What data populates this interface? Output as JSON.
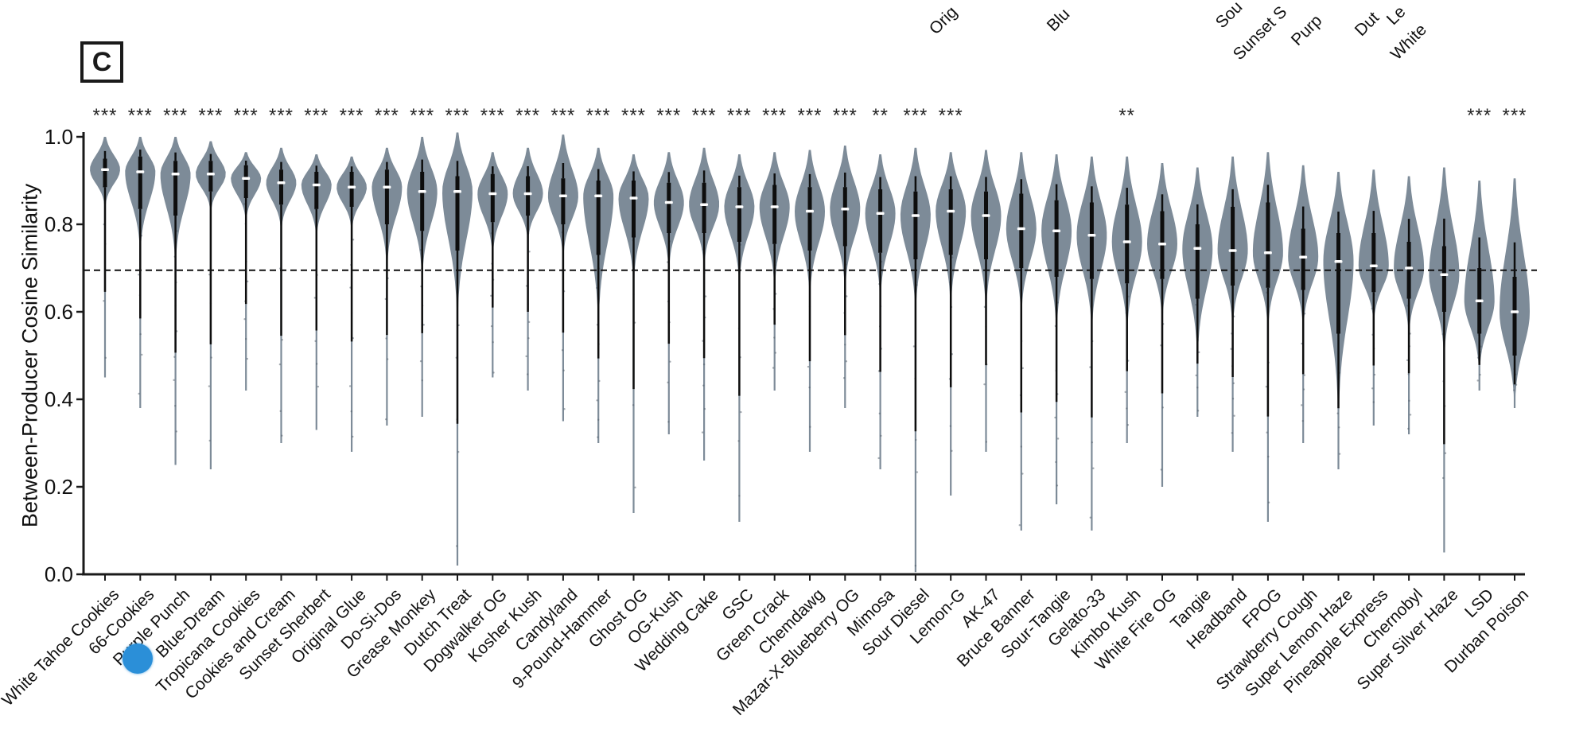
{
  "panel": {
    "label": "C"
  },
  "figure": {
    "top_cutoff_labels": [
      "Orig",
      "Blu",
      "Sou",
      "Sunset S",
      "Purp",
      "Dut",
      "Le",
      "White"
    ]
  },
  "marker": {
    "shape": "circle",
    "color": "#2b8fd8",
    "near_label": "Purple Punch"
  },
  "chart_data": {
    "type": "violin",
    "title": "",
    "xlabel": "",
    "ylabel": "Between-Producer Cosine Similarity",
    "ylim": [
      0.0,
      1.0
    ],
    "yticks": [
      "0.0",
      "0.2",
      "0.4",
      "0.6",
      "0.8",
      "1.0"
    ],
    "grid": false,
    "reference_line": 0.695,
    "reference_line_style": "dashed",
    "colors": {
      "violin_fill": "#7d8b98",
      "box": "#0d0d0d",
      "median": "#ffffff",
      "axis": "#1a1a1a",
      "marker_dot": "#2b8fd8"
    },
    "categories": [
      "White Tahoe Cookies",
      "66-Cookies",
      "Purple Punch",
      "Blue-Dream",
      "Tropicana Cookies",
      "Cookies and Cream",
      "Sunset Sherbert",
      "Original Glue",
      "Do-Si-Dos",
      "Grease Monkey",
      "Dutch Treat",
      "Dogwalker OG",
      "Kosher Kush",
      "Candyland",
      "9-Pound-Hammer",
      "Ghost OG",
      "OG-Kush",
      "Wedding Cake",
      "GSC",
      "Green Crack",
      "Chemdawg",
      "Mazar-X-Blueberry OG",
      "Mimosa",
      "Sour Diesel",
      "Lemon-G",
      "AK-47",
      "Bruce Banner",
      "Sour-Tangie",
      "Gelato-33",
      "Kimbo Kush",
      "White Fire OG",
      "Tangie",
      "Headband",
      "FPOG",
      "Strawberry Cough",
      "Super Lemon Haze",
      "Pineapple Express",
      "Chernobyl",
      "Super Silver Haze",
      "LSD",
      "Durban Poison"
    ],
    "violins": [
      {
        "name": "White Tahoe Cookies",
        "sig": "***",
        "median": 0.925,
        "q1": 0.885,
        "q3": 0.95,
        "max": 1.0,
        "min": 0.45
      },
      {
        "name": "66-Cookies",
        "sig": "***",
        "median": 0.92,
        "q1": 0.835,
        "q3": 0.955,
        "max": 1.0,
        "min": 0.38
      },
      {
        "name": "Purple Punch",
        "sig": "***",
        "median": 0.915,
        "q1": 0.82,
        "q3": 0.945,
        "max": 1.0,
        "min": 0.25
      },
      {
        "name": "Blue-Dream",
        "sig": "***",
        "median": 0.915,
        "q1": 0.875,
        "q3": 0.945,
        "max": 0.99,
        "min": 0.24
      },
      {
        "name": "Tropicana Cookies",
        "sig": "***",
        "median": 0.905,
        "q1": 0.86,
        "q3": 0.935,
        "max": 0.965,
        "min": 0.42
      },
      {
        "name": "Cookies and Cream",
        "sig": "***",
        "median": 0.895,
        "q1": 0.845,
        "q3": 0.925,
        "max": 0.975,
        "min": 0.3
      },
      {
        "name": "Sunset Sherbert",
        "sig": "***",
        "median": 0.89,
        "q1": 0.835,
        "q3": 0.92,
        "max": 0.96,
        "min": 0.33
      },
      {
        "name": "Original Glue",
        "sig": "***",
        "median": 0.885,
        "q1": 0.84,
        "q3": 0.92,
        "max": 0.955,
        "min": 0.28
      },
      {
        "name": "Do-Si-Dos",
        "sig": "***",
        "median": 0.885,
        "q1": 0.8,
        "q3": 0.925,
        "max": 0.975,
        "min": 0.34
      },
      {
        "name": "Grease Monkey",
        "sig": "***",
        "median": 0.875,
        "q1": 0.785,
        "q3": 0.92,
        "max": 1.0,
        "min": 0.36
      },
      {
        "name": "Dutch Treat",
        "sig": "***",
        "median": 0.875,
        "q1": 0.74,
        "q3": 0.91,
        "max": 1.01,
        "min": 0.02
      },
      {
        "name": "Dogwalker OG",
        "sig": "***",
        "median": 0.87,
        "q1": 0.805,
        "q3": 0.915,
        "max": 0.965,
        "min": 0.45
      },
      {
        "name": "Kosher Kush",
        "sig": "***",
        "median": 0.87,
        "q1": 0.82,
        "q3": 0.91,
        "max": 0.975,
        "min": 0.42
      },
      {
        "name": "Candyland",
        "sig": "***",
        "median": 0.865,
        "q1": 0.8,
        "q3": 0.905,
        "max": 1.005,
        "min": 0.35
      },
      {
        "name": "9-Pound-Hammer",
        "sig": "***",
        "median": 0.865,
        "q1": 0.73,
        "q3": 0.9,
        "max": 0.975,
        "min": 0.3
      },
      {
        "name": "Ghost OG",
        "sig": "***",
        "median": 0.86,
        "q1": 0.77,
        "q3": 0.9,
        "max": 0.96,
        "min": 0.14
      },
      {
        "name": "OG-Kush",
        "sig": "***",
        "median": 0.85,
        "q1": 0.78,
        "q3": 0.895,
        "max": 0.965,
        "min": 0.32
      },
      {
        "name": "Wedding Cake",
        "sig": "***",
        "median": 0.845,
        "q1": 0.78,
        "q3": 0.895,
        "max": 0.975,
        "min": 0.26
      },
      {
        "name": "GSC",
        "sig": "***",
        "median": 0.84,
        "q1": 0.76,
        "q3": 0.885,
        "max": 0.96,
        "min": 0.12
      },
      {
        "name": "Green Crack",
        "sig": "***",
        "median": 0.84,
        "q1": 0.755,
        "q3": 0.89,
        "max": 0.965,
        "min": 0.42
      },
      {
        "name": "Chemdawg",
        "sig": "***",
        "median": 0.83,
        "q1": 0.74,
        "q3": 0.885,
        "max": 0.97,
        "min": 0.28
      },
      {
        "name": "Mazar-X-Blueberry OG",
        "sig": "***",
        "median": 0.835,
        "q1": 0.75,
        "q3": 0.885,
        "max": 0.98,
        "min": 0.38
      },
      {
        "name": "Mimosa",
        "sig": "**",
        "median": 0.825,
        "q1": 0.735,
        "q3": 0.88,
        "max": 0.96,
        "min": 0.24
      },
      {
        "name": "Sour Diesel",
        "sig": "***",
        "median": 0.82,
        "q1": 0.72,
        "q3": 0.875,
        "max": 0.975,
        "min": 0.005
      },
      {
        "name": "Lemon-G",
        "sig": "***",
        "median": 0.83,
        "q1": 0.73,
        "q3": 0.88,
        "max": 0.965,
        "min": 0.18
      },
      {
        "name": "AK-47",
        "sig": "",
        "median": 0.82,
        "q1": 0.72,
        "q3": 0.875,
        "max": 0.97,
        "min": 0.28
      },
      {
        "name": "Bruce Banner",
        "sig": "",
        "median": 0.79,
        "q1": 0.7,
        "q3": 0.87,
        "max": 0.965,
        "min": 0.1
      },
      {
        "name": "Sour-Tangie",
        "sig": "",
        "median": 0.785,
        "q1": 0.68,
        "q3": 0.855,
        "max": 0.96,
        "min": 0.16
      },
      {
        "name": "Gelato-33",
        "sig": "",
        "median": 0.775,
        "q1": 0.675,
        "q3": 0.85,
        "max": 0.955,
        "min": 0.1
      },
      {
        "name": "Kimbo Kush",
        "sig": "**",
        "median": 0.76,
        "q1": 0.665,
        "q3": 0.845,
        "max": 0.955,
        "min": 0.3
      },
      {
        "name": "White Fire OG",
        "sig": "",
        "median": 0.755,
        "q1": 0.675,
        "q3": 0.83,
        "max": 0.94,
        "min": 0.2
      },
      {
        "name": "Tangie",
        "sig": "",
        "median": 0.745,
        "q1": 0.63,
        "q3": 0.8,
        "max": 0.93,
        "min": 0.36
      },
      {
        "name": "Headband",
        "sig": "",
        "median": 0.74,
        "q1": 0.66,
        "q3": 0.84,
        "max": 0.955,
        "min": 0.28
      },
      {
        "name": "FPOG",
        "sig": "",
        "median": 0.735,
        "q1": 0.655,
        "q3": 0.85,
        "max": 0.965,
        "min": 0.12
      },
      {
        "name": "Strawberry Cough",
        "sig": "",
        "median": 0.725,
        "q1": 0.65,
        "q3": 0.79,
        "max": 0.935,
        "min": 0.3
      },
      {
        "name": "Super Lemon Haze",
        "sig": "",
        "median": 0.715,
        "q1": 0.55,
        "q3": 0.78,
        "max": 0.92,
        "min": 0.24
      },
      {
        "name": "Pineapple Express",
        "sig": "",
        "median": 0.705,
        "q1": 0.645,
        "q3": 0.78,
        "max": 0.925,
        "min": 0.34
      },
      {
        "name": "Chernobyl",
        "sig": "",
        "median": 0.7,
        "q1": 0.63,
        "q3": 0.76,
        "max": 0.91,
        "min": 0.32
      },
      {
        "name": "Super Silver Haze",
        "sig": "",
        "median": 0.685,
        "q1": 0.6,
        "q3": 0.75,
        "max": 0.93,
        "min": 0.05
      },
      {
        "name": "LSD",
        "sig": "***",
        "median": 0.625,
        "q1": 0.55,
        "q3": 0.7,
        "max": 0.9,
        "min": 0.42
      },
      {
        "name": "Durban Poison",
        "sig": "***",
        "median": 0.6,
        "q1": 0.5,
        "q3": 0.68,
        "max": 0.905,
        "min": 0.38
      }
    ]
  }
}
